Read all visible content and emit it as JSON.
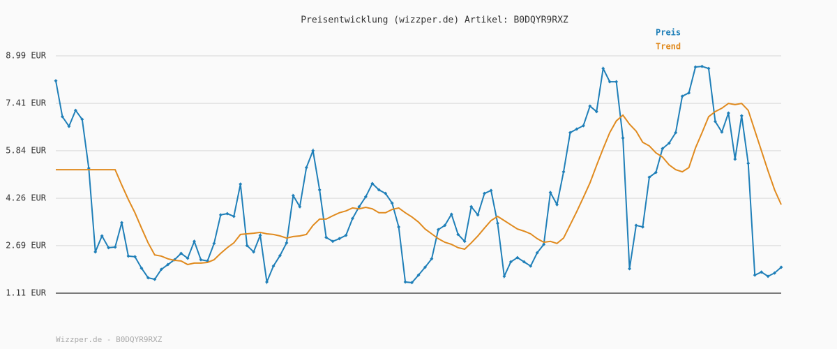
{
  "chart_data": {
    "type": "line",
    "title": "Preisentwicklung (wizzper.de) Artikel: B0DQYR9RXZ",
    "footer": "Wizzper.de - B0DQYR9RXZ",
    "categories": [
      null,
      null,
      null,
      null,
      null,
      null,
      null,
      null,
      null,
      null,
      null,
      null,
      null,
      null,
      null,
      null,
      null,
      null,
      null,
      null,
      null,
      null,
      null,
      null,
      null,
      null,
      null,
      null,
      null,
      null,
      null,
      null,
      null,
      null,
      null,
      null,
      null,
      null,
      null,
      null,
      null,
      null,
      null,
      null,
      null,
      null,
      null,
      null,
      null,
      null,
      null,
      null,
      null,
      null,
      null,
      null,
      null,
      null,
      null,
      null,
      null,
      null,
      null,
      null,
      null,
      null,
      null,
      null,
      null,
      null,
      null,
      null,
      null,
      null,
      null,
      null,
      null,
      null,
      null,
      null,
      null,
      null,
      null,
      null,
      null,
      null,
      null,
      null,
      null,
      null,
      null,
      null,
      null,
      null,
      null,
      null,
      null,
      null,
      null,
      null,
      null,
      null,
      null,
      null,
      null,
      null,
      null,
      null,
      null,
      null,
      null
    ],
    "series": [
      {
        "name": "Preis",
        "color": "#1f7fb8",
        "markers": true,
        "values": [
          8.16,
          6.97,
          6.65,
          7.18,
          6.88,
          5.26,
          2.48,
          3.01,
          2.62,
          2.64,
          3.45,
          2.34,
          2.32,
          1.94,
          1.62,
          1.57,
          1.9,
          2.06,
          2.22,
          2.43,
          2.27,
          2.83,
          2.22,
          2.18,
          2.76,
          3.71,
          3.75,
          3.66,
          4.73,
          2.69,
          2.48,
          3.03,
          1.48,
          2.01,
          2.36,
          2.78,
          4.35,
          3.98,
          5.28,
          5.84,
          4.54,
          2.96,
          2.83,
          2.92,
          3.03,
          3.59,
          3.98,
          4.31,
          4.75,
          4.54,
          4.42,
          4.1,
          3.31,
          1.48,
          1.46,
          1.71,
          1.97,
          2.25,
          3.22,
          3.36,
          3.73,
          3.06,
          2.83,
          3.98,
          3.71,
          4.42,
          4.52,
          3.43,
          1.67,
          2.15,
          2.29,
          2.15,
          2.01,
          2.45,
          2.73,
          4.45,
          4.05,
          5.14,
          6.44,
          6.56,
          6.67,
          7.32,
          7.14,
          8.57,
          8.13,
          8.13,
          6.26,
          1.92,
          3.36,
          3.31,
          4.96,
          5.12,
          5.91,
          6.09,
          6.44,
          7.65,
          7.76,
          8.62,
          8.64,
          8.57,
          6.81,
          6.46,
          7.09,
          5.56,
          7.0,
          5.42,
          1.71,
          1.81,
          1.67,
          1.78,
          1.97
        ]
      },
      {
        "name": "Trend",
        "color": "#e08a1e",
        "markers": false,
        "values": [
          5.21,
          5.21,
          5.21,
          5.21,
          5.21,
          5.21,
          5.21,
          5.21,
          5.21,
          5.21,
          4.7,
          4.22,
          3.78,
          3.27,
          2.78,
          2.38,
          2.34,
          2.25,
          2.2,
          2.18,
          2.06,
          2.11,
          2.11,
          2.13,
          2.22,
          2.43,
          2.62,
          2.78,
          3.06,
          3.08,
          3.1,
          3.13,
          3.08,
          3.06,
          3.01,
          2.94,
          2.99,
          3.01,
          3.06,
          3.36,
          3.57,
          3.57,
          3.68,
          3.78,
          3.84,
          3.94,
          3.91,
          3.96,
          3.91,
          3.78,
          3.78,
          3.89,
          3.94,
          3.78,
          3.64,
          3.47,
          3.24,
          3.08,
          2.92,
          2.8,
          2.73,
          2.62,
          2.57,
          2.78,
          3.01,
          3.27,
          3.52,
          3.66,
          3.52,
          3.38,
          3.24,
          3.17,
          3.08,
          2.92,
          2.8,
          2.83,
          2.76,
          2.94,
          3.38,
          3.82,
          4.29,
          4.77,
          5.35,
          5.91,
          6.44,
          6.83,
          7.02,
          6.72,
          6.49,
          6.12,
          6.0,
          5.77,
          5.63,
          5.37,
          5.21,
          5.14,
          5.28,
          5.93,
          6.44,
          6.97,
          7.14,
          7.25,
          7.41,
          7.37,
          7.41,
          7.18,
          6.51,
          5.84,
          5.17,
          4.54,
          4.05
        ]
      }
    ],
    "ylim": [
      1.11,
      8.99
    ],
    "yticks": [
      {
        "value": 1.11,
        "label": "1.11 EUR"
      },
      {
        "value": 2.69,
        "label": "2.69 EUR"
      },
      {
        "value": 4.26,
        "label": "4.26 EUR"
      },
      {
        "value": 5.84,
        "label": "5.84 EUR"
      },
      {
        "value": 7.41,
        "label": "7.41 EUR"
      },
      {
        "value": 8.99,
        "label": "8.99 EUR"
      }
    ],
    "grid": true,
    "legend": "top-right"
  }
}
